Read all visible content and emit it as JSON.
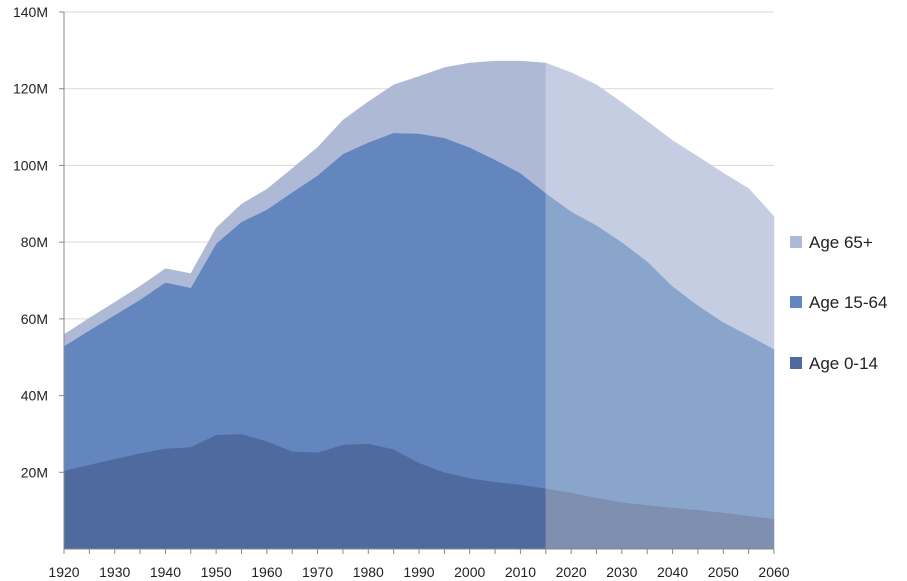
{
  "chart_data": {
    "type": "area",
    "stacked": true,
    "title": "",
    "xlabel": "",
    "ylabel": "",
    "x": [
      1920,
      1925,
      1930,
      1935,
      1940,
      1945,
      1950,
      1955,
      1960,
      1965,
      1970,
      1975,
      1980,
      1985,
      1990,
      1995,
      2000,
      2005,
      2010,
      2015,
      2020,
      2025,
      2030,
      2035,
      2040,
      2045,
      2050,
      2055,
      2060
    ],
    "projection_start": 2015,
    "series": [
      {
        "name": "Age 0-14",
        "color": "#4f6a9e",
        "projection_color": "#7f8fb0",
        "values": [
          20.4,
          22.0,
          23.5,
          25.0,
          26.2,
          26.6,
          29.8,
          30.0,
          28.1,
          25.5,
          25.2,
          27.2,
          27.5,
          26.0,
          22.5,
          20.0,
          18.5,
          17.5,
          16.8,
          15.8,
          14.7,
          13.4,
          12.2,
          11.5,
          10.8,
          10.2,
          9.5,
          8.7,
          7.9
        ]
      },
      {
        "name": "Age 15-64",
        "color": "#6486bf",
        "projection_color": "#8aa5cc",
        "values": [
          32.5,
          35.0,
          37.5,
          40.0,
          43.3,
          41.5,
          49.8,
          55.3,
          60.4,
          67.5,
          72.2,
          75.8,
          78.5,
          82.5,
          85.8,
          87.2,
          86.2,
          84.0,
          81.2,
          77.0,
          73.3,
          71.0,
          67.8,
          63.5,
          57.7,
          53.3,
          49.6,
          47.0,
          44.2
        ]
      },
      {
        "name": "Age 65+",
        "color": "#aeb9d6",
        "projection_color": "#c4cde1",
        "values": [
          3.0,
          3.2,
          3.3,
          3.5,
          3.6,
          3.7,
          4.1,
          4.6,
          5.3,
          6.2,
          7.3,
          8.8,
          10.6,
          12.5,
          14.9,
          18.3,
          22.0,
          25.7,
          29.2,
          33.9,
          36.2,
          36.6,
          36.4,
          36.5,
          38.0,
          38.8,
          38.9,
          38.3,
          34.6
        ]
      }
    ],
    "ylim": [
      0,
      140
    ],
    "xlim": [
      1920,
      2060
    ],
    "yticks": [
      20,
      40,
      60,
      80,
      100,
      120,
      140
    ],
    "ytick_labels": [
      "20M",
      "40M",
      "60M",
      "80M",
      "100M",
      "120M",
      "140M"
    ],
    "xticks": [
      1920,
      1930,
      1940,
      1950,
      1960,
      1970,
      1980,
      1990,
      2000,
      2010,
      2020,
      2030,
      2040,
      2050,
      2060
    ],
    "xtick_labels": [
      "1920",
      "1930",
      "1940",
      "1950",
      "1960",
      "1970",
      "1980",
      "1990",
      "2000",
      "2010",
      "2020",
      "2030",
      "2040",
      "2050",
      "2060"
    ],
    "legend": {
      "placement": "right",
      "entries": [
        {
          "label": "Age 65+",
          "color": "#aeb9d6"
        },
        {
          "label": "Age 15-64",
          "color": "#6486bf"
        },
        {
          "label": "Age 0-14",
          "color": "#4f6a9e"
        }
      ]
    },
    "grid": "horizontal"
  }
}
